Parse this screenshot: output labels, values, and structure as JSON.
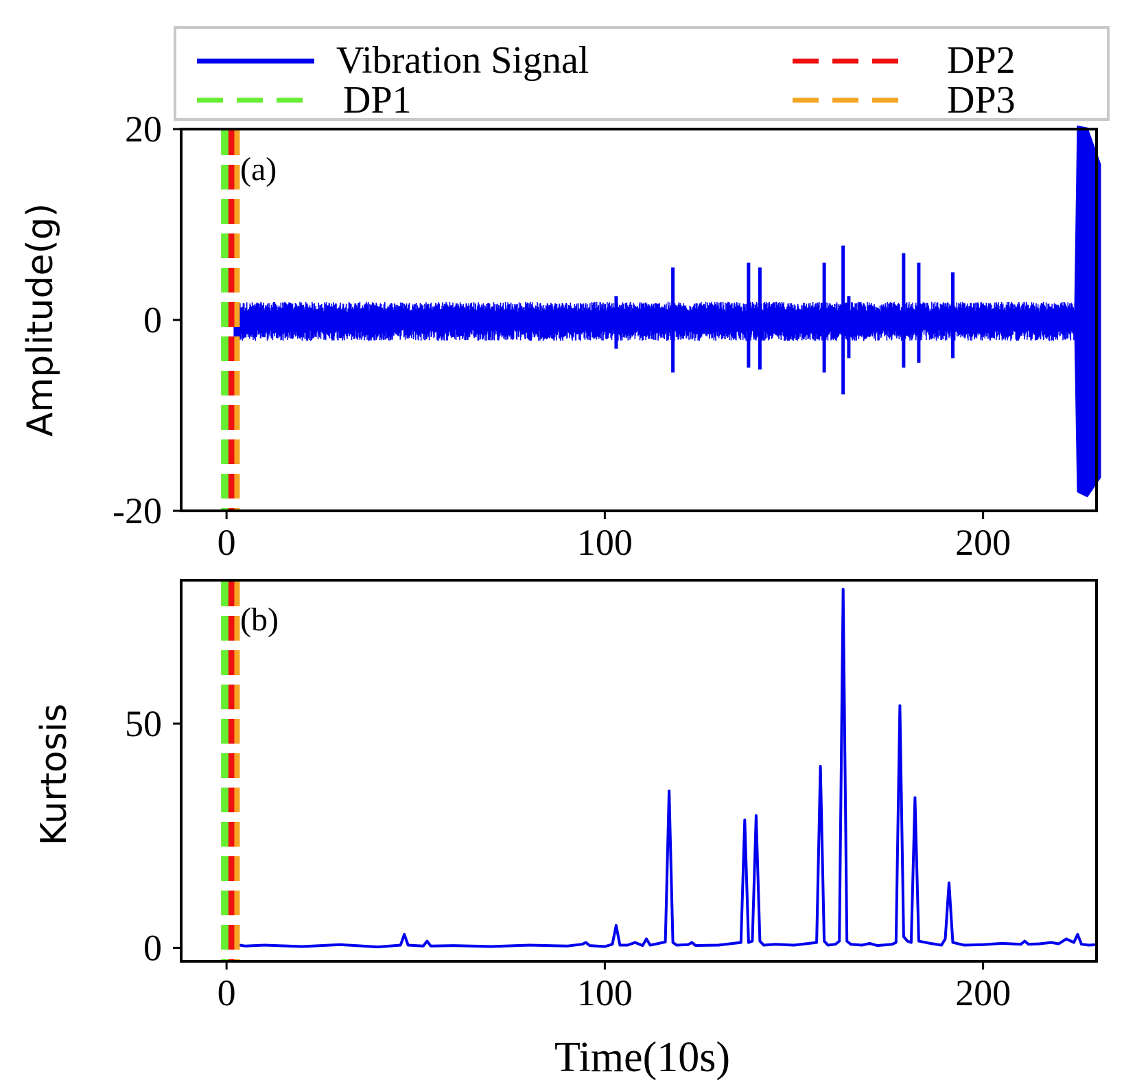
{
  "chart_data": [
    {
      "id": "a",
      "type": "line",
      "panel_label": "(a)",
      "xlabel": "",
      "ylabel": "Amplitude(g)",
      "xlim": [
        -12,
        230
      ],
      "ylim": [
        -20,
        20
      ],
      "xticks": [
        0,
        100,
        200
      ],
      "yticks": [
        -20,
        0,
        20
      ],
      "xtick_labels": [
        "0",
        "100",
        "200"
      ],
      "ytick_labels": [
        "-20",
        "0",
        "20"
      ],
      "series": [
        {
          "name": "Vibration Signal",
          "color": "#0000ee",
          "noise_range": [
            -2.2,
            1.9
          ],
          "x_start": 0,
          "x_end": 232,
          "spikes": [
            {
              "x": 103,
              "hi": 2.5,
              "lo": -3
            },
            {
              "x": 118,
              "hi": 5.5,
              "lo": -5.5
            },
            {
              "x": 138,
              "hi": 6,
              "lo": -5
            },
            {
              "x": 141,
              "hi": 5.5,
              "lo": -5.2
            },
            {
              "x": 158,
              "hi": 6,
              "lo": -5.5
            },
            {
              "x": 163,
              "hi": 7.8,
              "lo": -7.8
            },
            {
              "x": 164.5,
              "hi": 2.5,
              "lo": -4
            },
            {
              "x": 179,
              "hi": 7,
              "lo": -5
            },
            {
              "x": 183,
              "hi": 6,
              "lo": -4.5
            },
            {
              "x": 192,
              "hi": 5,
              "lo": -4
            }
          ],
          "burst": {
            "x_start": 225,
            "x_end": 231,
            "hi": 20.3,
            "lo": -18.5
          }
        }
      ],
      "vlines": [
        {
          "name": "DP1",
          "x": 0,
          "color": "#66ee33"
        },
        {
          "name": "DP2",
          "x": 0.3,
          "color": "#ee1111"
        },
        {
          "name": "DP3",
          "x": 0.6,
          "color": "#f5a623"
        }
      ]
    },
    {
      "id": "b",
      "type": "line",
      "panel_label": "(b)",
      "xlabel": "Time(10s)",
      "ylabel": "Kurtosis",
      "xlim": [
        -12,
        230
      ],
      "ylim": [
        -3,
        82
      ],
      "xticks": [
        0,
        100,
        200
      ],
      "yticks": [
        0,
        50
      ],
      "xtick_labels": [
        "0",
        "100",
        "200"
      ],
      "ytick_labels": [
        "0",
        "50"
      ],
      "series": [
        {
          "name": "Kurtosis",
          "color": "#0000ee",
          "x": [
            2,
            5,
            10,
            20,
            30,
            40,
            46,
            47,
            48,
            52,
            53,
            54,
            60,
            70,
            80,
            90,
            94,
            95,
            96,
            100,
            102,
            103,
            104,
            106,
            108,
            110,
            111,
            112,
            116,
            117,
            118,
            119,
            122,
            123,
            124,
            130,
            136,
            137,
            138,
            139,
            140,
            141,
            142,
            145,
            150,
            156,
            157,
            158,
            159,
            161,
            162,
            163,
            164,
            165,
            168,
            170,
            172,
            176,
            177,
            178,
            179,
            180,
            181,
            182,
            183,
            186,
            189,
            190,
            191,
            192,
            195,
            200,
            205,
            210,
            211,
            212,
            215,
            218,
            220,
            222,
            224,
            225,
            226,
            228,
            230
          ],
          "y": [
            0.8,
            0.4,
            0.6,
            0.3,
            0.7,
            0.2,
            0.6,
            3,
            0.6,
            0.4,
            1.5,
            0.4,
            0.5,
            0.3,
            0.6,
            0.4,
            0.8,
            1.2,
            0.5,
            0.3,
            0.8,
            5,
            0.6,
            0.6,
            1.2,
            0.5,
            2,
            0.6,
            1.3,
            35,
            1.2,
            0.6,
            0.7,
            1.2,
            0.5,
            0.6,
            1.2,
            28.5,
            1.2,
            1.5,
            29.5,
            1.5,
            0.6,
            0.8,
            0.6,
            1.2,
            40.5,
            1.5,
            0.6,
            0.8,
            1.5,
            80,
            1.5,
            0.8,
            0.6,
            1,
            0.5,
            0.8,
            1.2,
            54,
            2.5,
            1.5,
            1.2,
            33.5,
            1.5,
            1,
            0.6,
            2,
            14.5,
            1.2,
            0.6,
            0.7,
            1,
            0.8,
            1.5,
            0.8,
            0.9,
            1.2,
            0.9,
            2,
            1.2,
            3,
            0.8,
            0.6,
            0.7
          ]
        }
      ],
      "vlines": [
        {
          "name": "DP1",
          "x": 0,
          "color": "#66ee33"
        },
        {
          "name": "DP2",
          "x": 0.3,
          "color": "#ee1111"
        },
        {
          "name": "DP3",
          "x": 0.6,
          "color": "#f5a623"
        }
      ]
    }
  ],
  "legend": {
    "placement": "top",
    "entries": [
      {
        "label": "Vibration Signal",
        "color": "#0000ee",
        "style": "solid"
      },
      {
        "label": "DP1",
        "color": "#66ee33",
        "style": "dashed"
      },
      {
        "label": "DP2",
        "color": "#ee1111",
        "style": "dashed"
      },
      {
        "label": "DP3",
        "color": "#f5a623",
        "style": "dashed"
      }
    ]
  }
}
